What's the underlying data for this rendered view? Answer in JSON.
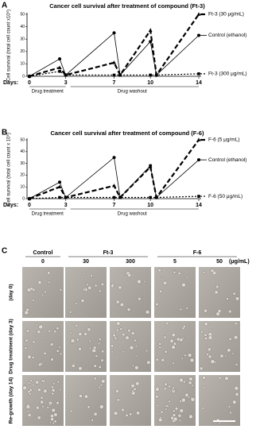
{
  "chart_data": [
    {
      "type": "line",
      "panel": "A",
      "title": "Cancer cell survival after treatment of compound (Ft-3)",
      "y_label": "Cell survival (total cell count x10⁶)",
      "x_prefix": "Days:",
      "annotations": [
        "Drug treatment",
        "Drug washout"
      ],
      "x": [
        0,
        2.5,
        3,
        7,
        7.5,
        10,
        10.5,
        14
      ],
      "xlim": [
        0,
        14
      ],
      "xticks": [
        0,
        3,
        7,
        10,
        14
      ],
      "ylim": [
        0,
        50
      ],
      "yticks": [
        0,
        10,
        20,
        30,
        40,
        50
      ],
      "series": [
        {
          "name": "Ft-3 (30 μg/mL)",
          "color": "#000000",
          "marker": "triangle",
          "dash": "6,3",
          "width": 2.2,
          "values": [
            0,
            7,
            1,
            11,
            1,
            37,
            1,
            50
          ]
        },
        {
          "name": "Control (ethanol)",
          "color": "#000000",
          "marker": "circle",
          "dash": "none",
          "width": 0.8,
          "values": [
            0,
            14,
            1,
            35,
            1,
            28,
            1,
            33
          ]
        },
        {
          "name": "Ft-3 (300 μg/mL)",
          "color": "#000000",
          "marker": "square",
          "dash": "2,2",
          "width": 1.2,
          "values": [
            0,
            4,
            1,
            1,
            1,
            1,
            1,
            2
          ]
        }
      ]
    },
    {
      "type": "line",
      "panel": "B",
      "title": "Cancer cell survival after treatment of compound (F-6)",
      "y_label": "Cell survival (total cell count x 10⁶)",
      "x_prefix": "Days:",
      "annotations": [
        "Drug treatment",
        "Drug washout"
      ],
      "x": [
        0,
        2.5,
        3,
        7,
        7.5,
        10,
        10.5,
        14
      ],
      "xlim": [
        0,
        14
      ],
      "xticks": [
        0,
        3,
        7,
        10,
        14
      ],
      "ylim": [
        0,
        50
      ],
      "yticks": [
        0,
        10,
        20,
        30,
        40,
        50
      ],
      "series": [
        {
          "name": "F-6 (5 μg/mL)",
          "color": "#000000",
          "marker": "triangle",
          "dash": "6,3",
          "width": 2.2,
          "values": [
            0,
            10,
            1,
            11,
            1,
            27,
            1,
            50
          ]
        },
        {
          "name": "Control (ethanol)",
          "color": "#000000",
          "marker": "circle",
          "dash": "none",
          "width": 0.8,
          "values": [
            0,
            14,
            1,
            35,
            1,
            28,
            1,
            33
          ]
        },
        {
          "name": "F-6 (50 μg/mL)",
          "color": "#000000",
          "marker": "square",
          "dash": "2,2",
          "width": 1.2,
          "values": [
            0,
            1,
            1,
            1,
            1,
            1,
            1,
            2
          ]
        }
      ]
    }
  ],
  "image_panel": {
    "panel": "C",
    "groups": [
      "Control",
      "Ft-3",
      "F-6"
    ],
    "columns": [
      "0",
      "30",
      "300",
      "5",
      "50"
    ],
    "unit": "(μg/mL)",
    "row_labels": [
      "(day 0)",
      "Drug treatment (day 3)",
      "Re-growth (day 14)"
    ]
  }
}
